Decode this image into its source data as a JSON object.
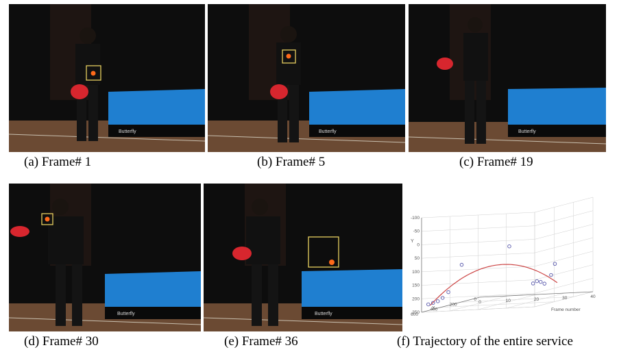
{
  "panels": [
    {
      "id": "a",
      "caption": "(a) Frame# 1",
      "table_brand": "Butterfly"
    },
    {
      "id": "b",
      "caption": "(b) Frame# 5",
      "table_brand": "Butterfly"
    },
    {
      "id": "c",
      "caption": "(c) Frame# 19",
      "table_brand": "Butterfly"
    },
    {
      "id": "d",
      "caption": "(d) Frame# 30",
      "table_brand": "Butterfly"
    },
    {
      "id": "e",
      "caption": "(e) Frame# 36",
      "table_brand": "Butterfly"
    },
    {
      "id": "f",
      "caption": "(f) Trajectory of the entire service"
    }
  ],
  "colors": {
    "background": "#0c0c0c",
    "table": "#1f7fd0",
    "table_edge": "#0b4d8a",
    "floor": "#6b4a33",
    "shirt": "#111111",
    "paddle": "#d7262e",
    "ball": "#ff6a1a",
    "box": "#e8d060",
    "curve": "#cc4444",
    "points": "#5555aa"
  },
  "chart_data": {
    "type": "scatter",
    "title": "",
    "xlabel": "X",
    "ylabel": "Y",
    "zlabel": "Frame number",
    "yticks": [
      "-100",
      "-50",
      "0",
      "50",
      "100",
      "150",
      "200",
      "250"
    ],
    "xticks": [
      "600",
      "400",
      "200",
      "0"
    ],
    "zticks": [
      "0",
      "10",
      "20",
      "30",
      "40"
    ],
    "ylim": [
      -100,
      250
    ],
    "xlim": [
      0,
      600
    ],
    "zlim": [
      0,
      40
    ],
    "grid": true,
    "points": [
      {
        "frame": 1,
        "x": 560,
        "y": 225
      },
      {
        "frame": 2,
        "x": 540,
        "y": 222
      },
      {
        "frame": 3,
        "x": 520,
        "y": 218
      },
      {
        "frame": 4,
        "x": 500,
        "y": 208
      },
      {
        "frame": 5,
        "x": 470,
        "y": 190
      },
      {
        "frame": 8,
        "x": 420,
        "y": 95
      },
      {
        "frame": 19,
        "x": 250,
        "y": 48
      },
      {
        "frame": 25,
        "x": 180,
        "y": 195
      },
      {
        "frame": 26,
        "x": 170,
        "y": 188
      },
      {
        "frame": 27,
        "x": 160,
        "y": 192
      },
      {
        "frame": 28,
        "x": 150,
        "y": 200
      },
      {
        "frame": 30,
        "x": 140,
        "y": 170
      },
      {
        "frame": 31,
        "x": 130,
        "y": 130
      }
    ]
  }
}
